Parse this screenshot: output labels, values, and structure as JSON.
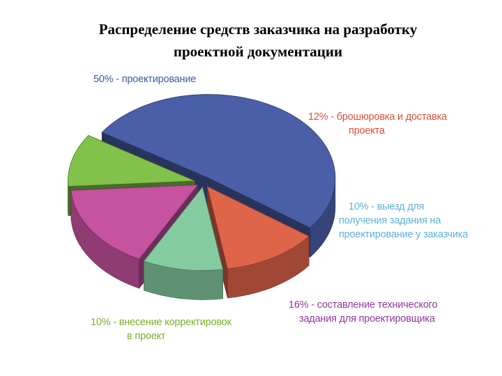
{
  "title": {
    "line1": "Распределение средств заказчика на разработку",
    "line2": "проектной документации"
  },
  "chart_data": {
    "type": "pie",
    "title": "Распределение средств заказчика на разработку проектной документации",
    "slices": [
      {
        "label_lines": [
          "50% - проектирование"
        ],
        "value": 50,
        "color": "#4b5fa8"
      },
      {
        "label_lines": [
          "12% - брошюровка и доставка",
          "проекта"
        ],
        "value": 12,
        "color": "#de644a"
      },
      {
        "label_lines": [
          "10% - выезд для",
          "получения задания на",
          "проектирование у заказчика"
        ],
        "value": 10,
        "color": "#84cba0"
      },
      {
        "label_lines": [
          "16% - составление технического",
          "задания для проектировщика"
        ],
        "value": 16,
        "color": "#c553a0"
      },
      {
        "label_lines": [
          "10% - внесение корректировок",
          "в проект"
        ],
        "value": 10,
        "color": "#82c24a"
      }
    ]
  }
}
